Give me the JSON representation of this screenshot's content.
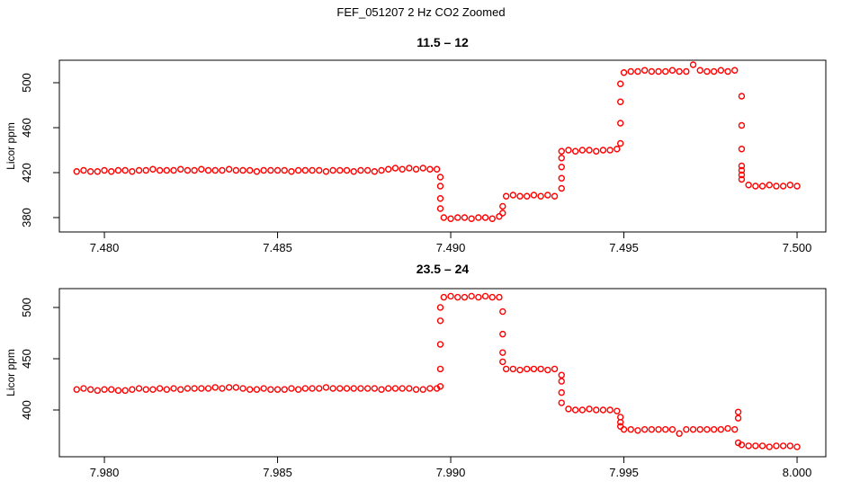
{
  "title": "FEF_051207  2 Hz CO2 Zoomed",
  "chart_data": [
    {
      "type": "scatter",
      "title": "11.5 – 12",
      "ylabel": "Licor ppm",
      "color": "#ff0000",
      "xlim": [
        7.4787,
        7.50083
      ],
      "ylim": [
        367.2,
        520
      ],
      "xticks": [
        {
          "value": 7.48,
          "label": "7.480"
        },
        {
          "value": 7.485,
          "label": "7.485"
        },
        {
          "value": 7.49,
          "label": "7.490"
        },
        {
          "value": 7.495,
          "label": "7.495"
        },
        {
          "value": 7.5,
          "label": "7.500"
        }
      ],
      "yticks": [
        380,
        420,
        460,
        500
      ],
      "x": [
        7.4792,
        7.4794,
        7.4796,
        7.4798,
        7.48,
        7.4802,
        7.4804,
        7.4806,
        7.4808,
        7.481,
        7.4812,
        7.4814,
        7.4816,
        7.4818,
        7.482,
        7.4822,
        7.4824,
        7.4826,
        7.4828,
        7.483,
        7.4832,
        7.4834,
        7.4836,
        7.4838,
        7.484,
        7.4842,
        7.4844,
        7.4846,
        7.4848,
        7.485,
        7.4852,
        7.4854,
        7.4856,
        7.4858,
        7.486,
        7.4862,
        7.4864,
        7.4866,
        7.4868,
        7.487,
        7.4872,
        7.4874,
        7.4876,
        7.4878,
        7.488,
        7.4882,
        7.4884,
        7.4886,
        7.4888,
        7.489,
        7.4892,
        7.4894,
        7.4896,
        7.4897,
        7.4897,
        7.4897,
        7.4897,
        7.4898,
        7.49,
        7.4902,
        7.4904,
        7.4906,
        7.4908,
        7.491,
        7.4912,
        7.4914,
        7.4915,
        7.4915,
        7.4916,
        7.4918,
        7.492,
        7.4922,
        7.4924,
        7.4926,
        7.4928,
        7.493,
        7.4932,
        7.4932,
        7.4932,
        7.4932,
        7.4932,
        7.4934,
        7.4936,
        7.4938,
        7.494,
        7.4942,
        7.4944,
        7.4946,
        7.4948,
        7.4949,
        7.4949,
        7.4949,
        7.4949,
        7.495,
        7.4952,
        7.4954,
        7.4956,
        7.4958,
        7.496,
        7.4962,
        7.4964,
        7.4966,
        7.4968,
        7.497,
        7.4972,
        7.4974,
        7.4976,
        7.4978,
        7.498,
        7.4982,
        7.4984,
        7.4984,
        7.4984,
        7.4984,
        7.4984,
        7.4984,
        7.4984,
        7.4986,
        7.4988,
        7.499,
        7.4992,
        7.4994,
        7.4996,
        7.4998,
        7.5
      ],
      "values": [
        421,
        422,
        421,
        421,
        422,
        421,
        422,
        422,
        421,
        422,
        422,
        423,
        422,
        422,
        422,
        423,
        422,
        422,
        423,
        422,
        422,
        422,
        423,
        422,
        422,
        422,
        421,
        422,
        422,
        422,
        422,
        421,
        422,
        422,
        422,
        422,
        421,
        422,
        422,
        422,
        421,
        422,
        422,
        421,
        422,
        423,
        424,
        423,
        424,
        423,
        424,
        423,
        423,
        416,
        408,
        397,
        388,
        380,
        379,
        380,
        380,
        379,
        380,
        380,
        379,
        381,
        384,
        390,
        399,
        400,
        399,
        399,
        400,
        399,
        400,
        399,
        406,
        415,
        425,
        433,
        439,
        440,
        439,
        440,
        440,
        439,
        440,
        440,
        441,
        446,
        464,
        483,
        499,
        509,
        510,
        510,
        511,
        510,
        510,
        510,
        511,
        510,
        510,
        516,
        511,
        510,
        510,
        511,
        510,
        511,
        488,
        462,
        441,
        426,
        422,
        418,
        414,
        409,
        408,
        408,
        409,
        408,
        408,
        409,
        408
      ]
    },
    {
      "type": "scatter",
      "title": "23.5 – 24",
      "ylabel": "Licor ppm",
      "color": "#ff0000",
      "xlim": [
        7.9787,
        8.00083
      ],
      "ylim": [
        354.4,
        518.4
      ],
      "xticks": [
        {
          "value": 7.98,
          "label": "7.980"
        },
        {
          "value": 7.985,
          "label": "7.985"
        },
        {
          "value": 7.99,
          "label": "7.990"
        },
        {
          "value": 7.995,
          "label": "7.995"
        },
        {
          "value": 8,
          "label": "8.000"
        }
      ],
      "yticks": [
        400,
        450,
        500
      ],
      "x": [
        7.9792,
        7.9794,
        7.9796,
        7.9798,
        7.98,
        7.9802,
        7.9804,
        7.9806,
        7.9808,
        7.981,
        7.9812,
        7.9814,
        7.9816,
        7.9818,
        7.982,
        7.9822,
        7.9824,
        7.9826,
        7.9828,
        7.983,
        7.9832,
        7.9834,
        7.9836,
        7.9838,
        7.984,
        7.9842,
        7.9844,
        7.9846,
        7.9848,
        7.985,
        7.9852,
        7.9854,
        7.9856,
        7.9858,
        7.986,
        7.9862,
        7.9864,
        7.9866,
        7.9868,
        7.987,
        7.9872,
        7.9874,
        7.9876,
        7.9878,
        7.988,
        7.9882,
        7.9884,
        7.9886,
        7.9888,
        7.989,
        7.9892,
        7.9894,
        7.9896,
        7.9897,
        7.9897,
        7.9897,
        7.9897,
        7.9897,
        7.9898,
        7.99,
        7.9902,
        7.9904,
        7.9906,
        7.9908,
        7.991,
        7.9912,
        7.9914,
        7.9915,
        7.9915,
        7.9915,
        7.9915,
        7.9916,
        7.9918,
        7.992,
        7.9922,
        7.9924,
        7.9926,
        7.9928,
        7.993,
        7.9932,
        7.9932,
        7.9932,
        7.9932,
        7.9934,
        7.9936,
        7.9938,
        7.994,
        7.9942,
        7.9944,
        7.9946,
        7.9948,
        7.9949,
        7.9949,
        7.9949,
        7.995,
        7.9952,
        7.9954,
        7.9956,
        7.9958,
        7.996,
        7.9962,
        7.9964,
        7.9966,
        7.9968,
        7.997,
        7.9972,
        7.9974,
        7.9976,
        7.9978,
        7.998,
        7.9982,
        7.9983,
        7.9983,
        7.9983,
        7.9984,
        7.9986,
        7.9988,
        7.999,
        7.9992,
        7.9994,
        7.9996,
        7.9998,
        8
      ],
      "values": [
        420,
        421,
        420,
        419,
        420,
        420,
        419,
        419,
        420,
        421,
        420,
        420,
        421,
        420,
        421,
        420,
        421,
        421,
        421,
        421,
        422,
        421,
        422,
        422,
        421,
        420,
        420,
        421,
        420,
        420,
        420,
        421,
        420,
        421,
        421,
        421,
        422,
        421,
        421,
        421,
        421,
        421,
        421,
        421,
        420,
        421,
        421,
        421,
        421,
        420,
        420,
        421,
        421,
        423,
        440,
        464,
        487,
        500,
        510,
        511,
        510,
        510,
        511,
        510,
        511,
        510,
        510,
        496,
        474,
        456,
        447,
        440,
        440,
        439,
        440,
        440,
        440,
        439,
        440,
        434,
        428,
        417,
        407,
        401,
        400,
        400,
        401,
        400,
        400,
        400,
        399,
        393,
        388,
        384,
        381,
        381,
        380,
        381,
        381,
        381,
        381,
        381,
        377,
        381,
        381,
        381,
        381,
        381,
        381,
        382,
        381,
        398,
        392,
        368,
        366,
        365,
        365,
        365,
        364,
        365,
        365,
        365,
        364
      ]
    }
  ]
}
